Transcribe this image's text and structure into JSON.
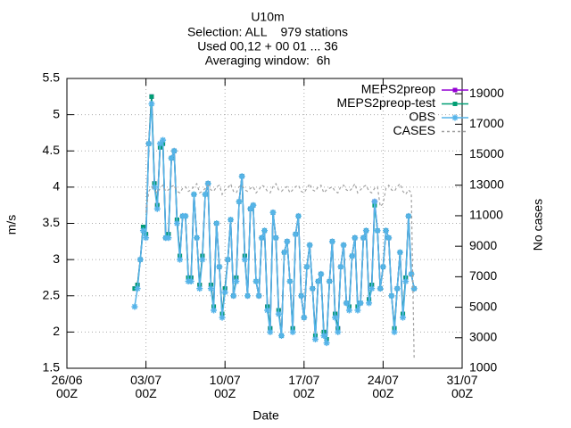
{
  "chart_data": {
    "type": "line",
    "title": "U10m",
    "subtitle": [
      "Selection: ALL    979 stations",
      "Used 00,12 + 00 01 ... 36",
      "Averaging window:  6h"
    ],
    "x_label": "Date",
    "y_label": "m/s",
    "y2_label": "No cases",
    "xlim": [
      "26/06 00Z",
      "31/07 00Z"
    ],
    "xticks": [
      "26/06 00Z",
      "03/07 00Z",
      "10/07 00Z",
      "17/07 00Z",
      "24/07 00Z",
      "31/07 00Z"
    ],
    "ylim": [
      1.5,
      5.5
    ],
    "yticks": [
      1.5,
      2,
      2.5,
      3,
      3.5,
      4,
      4.5,
      5,
      5.5
    ],
    "y2lim": [
      1000,
      20000
    ],
    "y2ticks": [
      1000,
      3000,
      5000,
      7000,
      9000,
      11000,
      13000,
      15000,
      17000,
      19000
    ],
    "grid": true,
    "legend": "top-right",
    "x": [
      "02/07 00Z",
      "02/07 06Z",
      "02/07 12Z",
      "02/07 18Z",
      "03/07 00Z",
      "03/07 06Z",
      "03/07 12Z",
      "03/07 18Z",
      "04/07 00Z",
      "04/07 06Z",
      "04/07 12Z",
      "04/07 18Z",
      "05/07 00Z",
      "05/07 06Z",
      "05/07 12Z",
      "05/07 18Z",
      "06/07 00Z",
      "06/07 06Z",
      "06/07 12Z",
      "06/07 18Z",
      "07/07 00Z",
      "07/07 06Z",
      "07/07 12Z",
      "07/07 18Z",
      "08/07 00Z",
      "08/07 06Z",
      "08/07 12Z",
      "08/07 18Z",
      "09/07 00Z",
      "09/07 06Z",
      "09/07 12Z",
      "09/07 18Z",
      "10/07 00Z",
      "10/07 06Z",
      "10/07 12Z",
      "10/07 18Z",
      "11/07 00Z",
      "11/07 06Z",
      "11/07 12Z",
      "11/07 18Z",
      "12/07 00Z",
      "12/07 06Z",
      "12/07 12Z",
      "12/07 18Z",
      "13/07 00Z",
      "13/07 06Z",
      "13/07 12Z",
      "13/07 18Z",
      "14/07 00Z",
      "14/07 06Z",
      "14/07 12Z",
      "14/07 18Z",
      "15/07 00Z",
      "15/07 06Z",
      "15/07 12Z",
      "15/07 18Z",
      "16/07 00Z",
      "16/07 06Z",
      "16/07 12Z",
      "16/07 18Z",
      "17/07 00Z",
      "17/07 06Z",
      "17/07 12Z",
      "17/07 18Z",
      "18/07 00Z",
      "18/07 06Z",
      "18/07 12Z",
      "18/07 18Z",
      "19/07 00Z",
      "19/07 06Z",
      "19/07 12Z",
      "19/07 18Z",
      "20/07 00Z",
      "20/07 06Z",
      "20/07 12Z",
      "20/07 18Z",
      "21/07 00Z",
      "21/07 06Z",
      "21/07 12Z",
      "21/07 18Z",
      "22/07 00Z",
      "22/07 06Z",
      "22/07 12Z",
      "22/07 18Z",
      "23/07 00Z",
      "23/07 06Z",
      "23/07 12Z",
      "23/07 18Z",
      "24/07 00Z",
      "24/07 06Z",
      "24/07 12Z",
      "24/07 18Z",
      "25/07 00Z",
      "25/07 06Z",
      "25/07 12Z",
      "25/07 18Z",
      "26/07 00Z",
      "26/07 06Z",
      "26/07 12Z",
      "26/07 18Z"
    ],
    "series": [
      {
        "name": "MEPS2preop",
        "color": "#9400d3",
        "marker": "square",
        "values": [
          2.6,
          2.65,
          3.0,
          3.45,
          3.35,
          4.6,
          5.25,
          4.05,
          3.75,
          4.55,
          4.6,
          3.3,
          3.35,
          4.4,
          4.5,
          3.55,
          3.05,
          3.6,
          3.6,
          2.75,
          2.75,
          3.9,
          3.3,
          2.65,
          3.05,
          3.9,
          4.05,
          2.65,
          2.35,
          3.5,
          2.9,
          2.25,
          2.6,
          3.0,
          3.55,
          2.5,
          2.75,
          3.8,
          4.15,
          3.05,
          2.5,
          3.7,
          3.75,
          2.7,
          2.5,
          3.3,
          3.4,
          2.35,
          2.05,
          3.65,
          3.3,
          2.3,
          1.95,
          3.1,
          3.25,
          2.7,
          2.05,
          3.35,
          3.6,
          2.5,
          2.2,
          2.9,
          3.2,
          2.6,
          1.95,
          2.7,
          2.8,
          2.0,
          1.9,
          2.7,
          3.25,
          2.25,
          2.05,
          2.9,
          3.2,
          2.4,
          2.35,
          3.05,
          3.3,
          2.35,
          2.4,
          3.3,
          3.4,
          2.45,
          2.65,
          3.8,
          3.4,
          2.6,
          2.9,
          3.4,
          3.3,
          2.5,
          2.05,
          2.6,
          3.1,
          2.25,
          2.75,
          3.6,
          2.8,
          2.6
        ]
      },
      {
        "name": "MEPS2preop-test",
        "color": "#009e73",
        "marker": "square",
        "values": [
          2.6,
          2.65,
          3.0,
          3.45,
          3.35,
          4.6,
          5.25,
          4.05,
          3.75,
          4.55,
          4.6,
          3.3,
          3.35,
          4.4,
          4.5,
          3.55,
          3.05,
          3.6,
          3.6,
          2.75,
          2.75,
          3.9,
          3.3,
          2.65,
          3.05,
          3.9,
          4.05,
          2.65,
          2.35,
          3.5,
          2.9,
          2.25,
          2.6,
          3.0,
          3.55,
          2.5,
          2.75,
          3.8,
          4.15,
          3.05,
          2.5,
          3.7,
          3.75,
          2.7,
          2.5,
          3.3,
          3.4,
          2.35,
          2.05,
          3.65,
          3.3,
          2.3,
          1.95,
          3.1,
          3.25,
          2.7,
          2.05,
          3.35,
          3.6,
          2.5,
          2.2,
          2.9,
          3.2,
          2.6,
          1.95,
          2.7,
          2.8,
          2.0,
          1.9,
          2.7,
          3.25,
          2.25,
          2.05,
          2.9,
          3.2,
          2.4,
          2.35,
          3.05,
          3.3,
          2.35,
          2.4,
          3.3,
          3.4,
          2.45,
          2.65,
          3.75,
          3.4,
          2.6,
          2.9,
          3.4,
          3.3,
          2.5,
          2.05,
          2.6,
          3.1,
          2.25,
          2.75,
          3.6,
          2.8,
          2.6
        ]
      },
      {
        "name": "OBS",
        "color": "#56b4e9",
        "marker": "star",
        "values": [
          2.35,
          2.6,
          3.0,
          3.4,
          3.3,
          4.6,
          5.15,
          4.0,
          3.7,
          4.6,
          4.65,
          3.3,
          3.3,
          4.4,
          4.5,
          3.5,
          3.0,
          3.6,
          3.6,
          2.7,
          2.7,
          3.9,
          3.3,
          2.6,
          3.0,
          3.9,
          4.05,
          2.6,
          2.3,
          3.5,
          2.9,
          2.2,
          2.55,
          3.0,
          3.55,
          2.5,
          2.7,
          3.8,
          4.15,
          3.0,
          2.5,
          3.7,
          3.75,
          2.7,
          2.5,
          3.3,
          3.4,
          2.3,
          2.0,
          3.65,
          3.3,
          2.25,
          1.95,
          3.1,
          3.25,
          2.7,
          2.0,
          3.35,
          3.6,
          2.5,
          2.2,
          2.9,
          3.2,
          2.6,
          1.9,
          2.7,
          2.8,
          1.95,
          1.85,
          2.7,
          3.25,
          2.2,
          2.0,
          2.9,
          3.2,
          2.4,
          2.3,
          3.05,
          3.3,
          2.3,
          2.4,
          3.3,
          3.4,
          2.4,
          2.6,
          3.8,
          3.4,
          2.6,
          2.9,
          3.4,
          3.3,
          2.5,
          2.0,
          2.6,
          3.1,
          2.2,
          2.7,
          3.6,
          2.8,
          2.6
        ]
      },
      {
        "name": "CASES",
        "color": "#a0a0a0",
        "axis": "y2",
        "dashed": true,
        "values": [
          null,
          null,
          null,
          null,
          11200,
          12600,
          12900,
          12700,
          12500,
          12800,
          13000,
          12600,
          12700,
          12900,
          13000,
          12600,
          12500,
          12800,
          12900,
          12600,
          12700,
          12900,
          13100,
          12500,
          12600,
          12800,
          13000,
          12700,
          12600,
          12900,
          13000,
          12400,
          12700,
          12800,
          13100,
          12600,
          12500,
          12900,
          13000,
          12700,
          12600,
          12800,
          12900,
          12500,
          12700,
          13000,
          12900,
          12600,
          12500,
          12900,
          13100,
          12700,
          12600,
          12800,
          12900,
          12500,
          12700,
          12900,
          13000,
          12600,
          12500,
          12800,
          13100,
          12700,
          12600,
          12900,
          13000,
          12500,
          12700,
          12800,
          12900,
          12600,
          12500,
          12900,
          13000,
          12700,
          12600,
          12800,
          13100,
          12500,
          12700,
          12900,
          13000,
          12600,
          12500,
          12800,
          12900,
          11600,
          11800,
          12800,
          13000,
          12700,
          12600,
          12900,
          13100,
          12600,
          12400,
          12700,
          12500,
          1600
        ]
      }
    ]
  }
}
